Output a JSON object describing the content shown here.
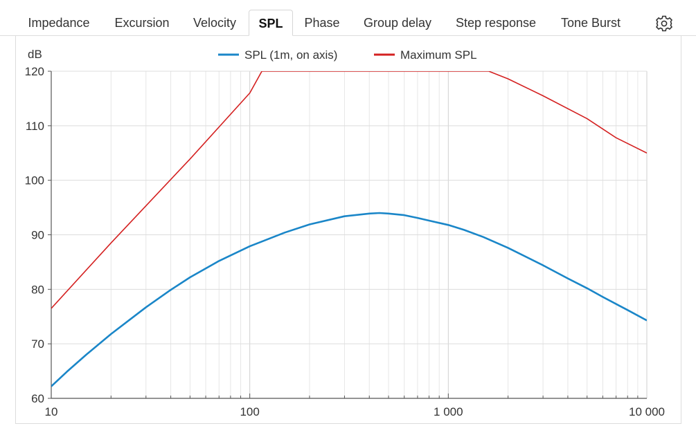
{
  "tabs": [
    {
      "label": "Impedance",
      "active": false
    },
    {
      "label": "Excursion",
      "active": false
    },
    {
      "label": "Velocity",
      "active": false
    },
    {
      "label": "SPL",
      "active": true
    },
    {
      "label": "Phase",
      "active": false
    },
    {
      "label": "Group delay",
      "active": false
    },
    {
      "label": "Step response",
      "active": false
    },
    {
      "label": "Tone Burst",
      "active": false
    }
  ],
  "settings_icon": "gear-icon",
  "chart_data": {
    "type": "line",
    "ylabel": "dB",
    "xscale": "log",
    "xlim": [
      10,
      10000
    ],
    "ylim": [
      60,
      120
    ],
    "grid": true,
    "legend_position": "top-center",
    "x_ticks": [
      {
        "value": 10,
        "label": "10"
      },
      {
        "value": 100,
        "label": "100"
      },
      {
        "value": 1000,
        "label": "1 000"
      },
      {
        "value": 10000,
        "label": "10 000"
      }
    ],
    "y_ticks": [
      60,
      70,
      80,
      90,
      100,
      110,
      120
    ],
    "series": [
      {
        "name": "SPL (1m, on axis)",
        "color": "#1a86c8",
        "points": [
          [
            10,
            62.2
          ],
          [
            12,
            64.9
          ],
          [
            15,
            68.0
          ],
          [
            20,
            71.8
          ],
          [
            25,
            74.5
          ],
          [
            30,
            76.7
          ],
          [
            40,
            79.9
          ],
          [
            50,
            82.2
          ],
          [
            70,
            85.2
          ],
          [
            100,
            87.9
          ],
          [
            150,
            90.4
          ],
          [
            200,
            91.9
          ],
          [
            300,
            93.4
          ],
          [
            400,
            93.9
          ],
          [
            450,
            94.0
          ],
          [
            500,
            93.9
          ],
          [
            600,
            93.6
          ],
          [
            700,
            93.1
          ],
          [
            800,
            92.6
          ],
          [
            1000,
            91.8
          ],
          [
            1200,
            90.9
          ],
          [
            1500,
            89.6
          ],
          [
            2000,
            87.6
          ],
          [
            3000,
            84.4
          ],
          [
            4000,
            82.0
          ],
          [
            5000,
            80.2
          ],
          [
            6000,
            78.6
          ],
          [
            8000,
            76.2
          ],
          [
            10000,
            74.3
          ]
        ]
      },
      {
        "name": "Maximum SPL",
        "color": "#d42020",
        "points": [
          [
            10,
            76.5
          ],
          [
            20,
            88.5
          ],
          [
            50,
            103.9
          ],
          [
            100,
            116.0
          ],
          [
            115,
            120.0
          ],
          [
            1600,
            120.0
          ],
          [
            2000,
            118.6
          ],
          [
            3000,
            115.5
          ],
          [
            5000,
            111.3
          ],
          [
            7000,
            107.8
          ],
          [
            10000,
            105.0
          ]
        ]
      }
    ]
  }
}
